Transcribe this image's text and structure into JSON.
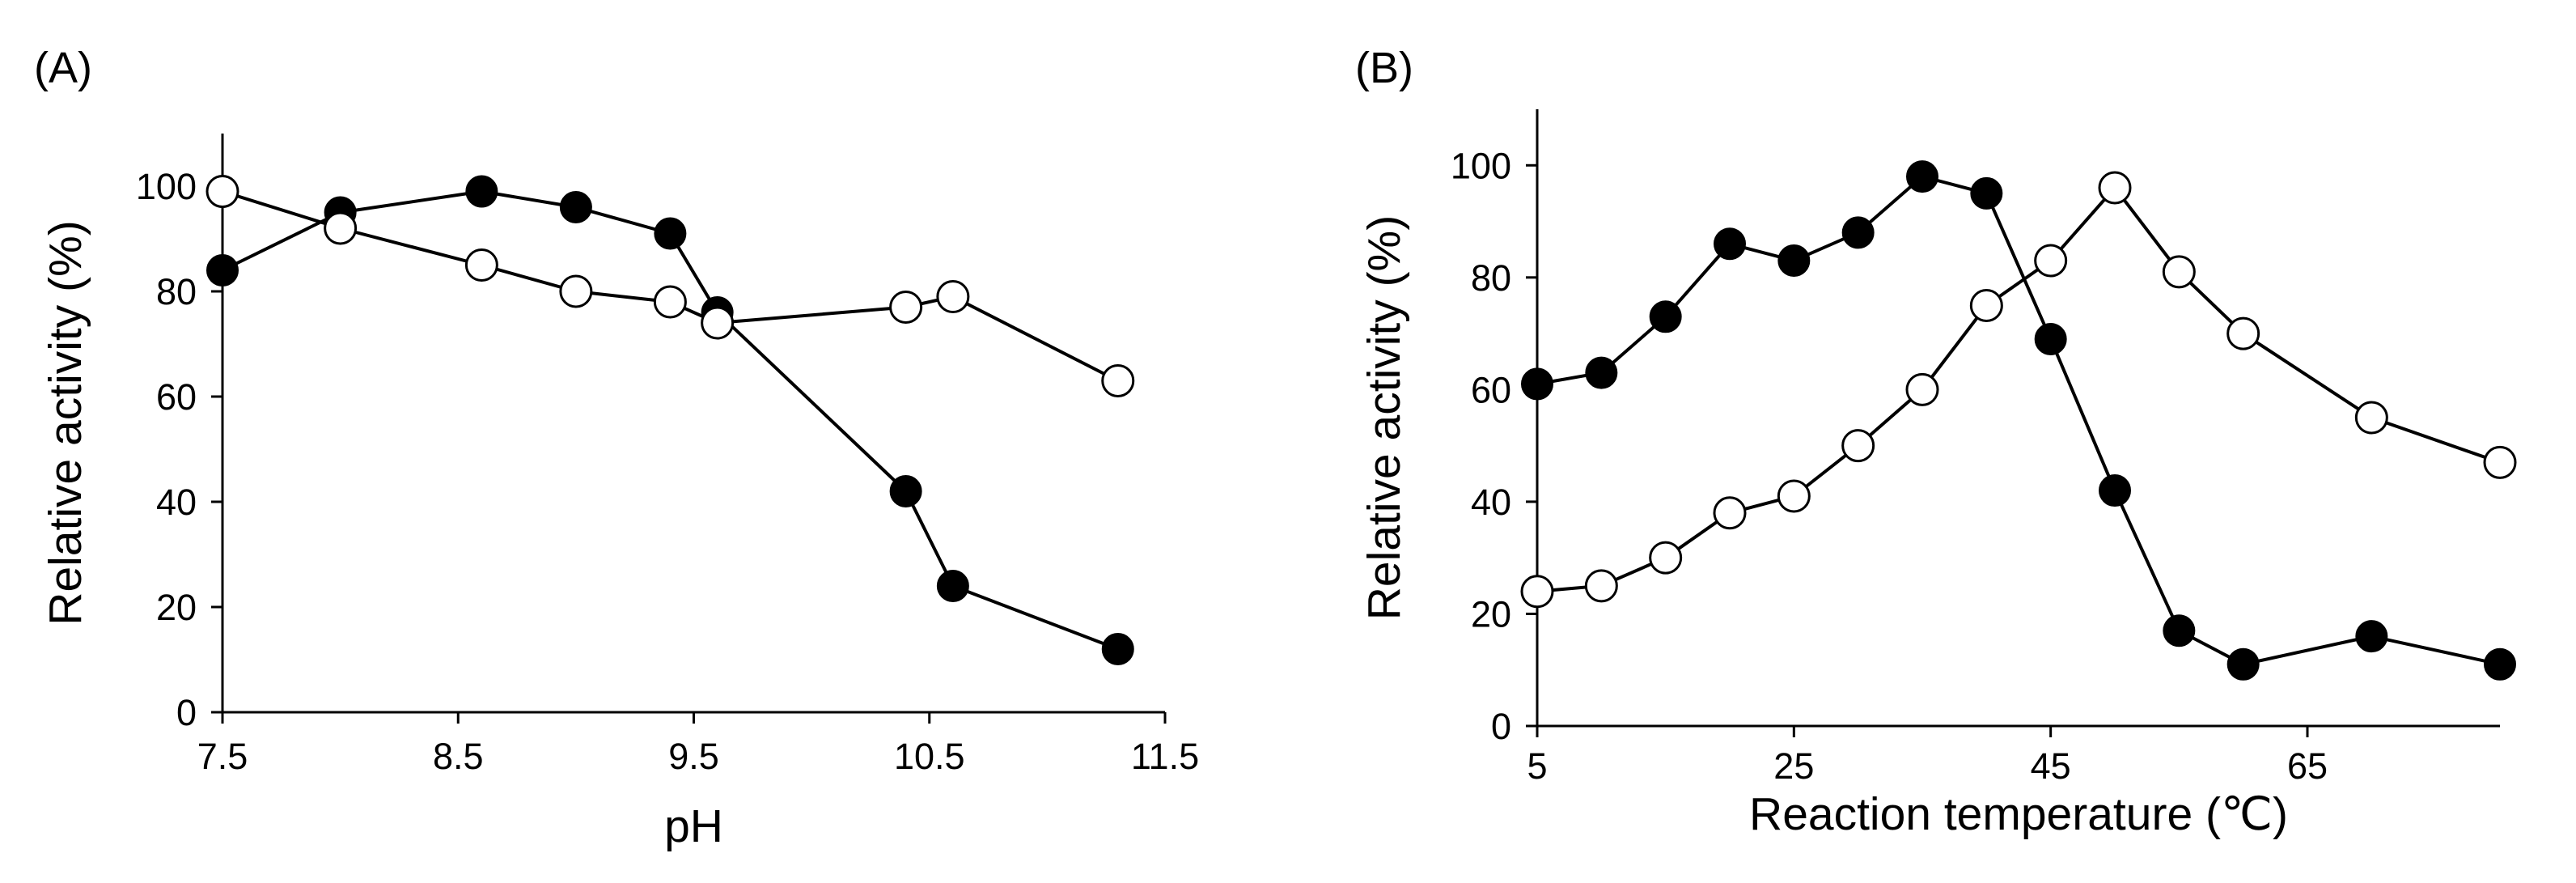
{
  "chart_data": [
    {
      "panel_label": "(A)",
      "type": "line",
      "xlabel": "pH",
      "ylabel": "Relative activity (%)",
      "xlim": [
        7.5,
        11.5
      ],
      "ylim": [
        0,
        110
      ],
      "xticks": [
        7.5,
        8.5,
        9.5,
        10.5,
        11.5
      ],
      "xtick_labels": [
        "7.5",
        "8.5",
        "9.5",
        "10.5",
        "11.5"
      ],
      "yticks": [
        0,
        20,
        40,
        60,
        80,
        100
      ],
      "ytick_labels": [
        "0",
        "20",
        "40",
        "60",
        "80",
        "100"
      ],
      "grid": false,
      "series": [
        {
          "name": "filled",
          "marker": "filled-circle",
          "x": [
            7.5,
            8.0,
            8.6,
            9.0,
            9.4,
            9.6,
            10.4,
            10.6,
            11.3
          ],
          "y": [
            84,
            95,
            99,
            96,
            91,
            76,
            42,
            24,
            12
          ]
        },
        {
          "name": "open",
          "marker": "open-circle",
          "x": [
            7.5,
            8.0,
            8.6,
            9.0,
            9.4,
            9.6,
            10.4,
            10.6,
            11.3
          ],
          "y": [
            99,
            92,
            85,
            80,
            78,
            74,
            77,
            79,
            63
          ]
        }
      ]
    },
    {
      "panel_label": "(B)",
      "type": "line",
      "xlabel": "Reaction temperature (℃)",
      "ylabel": "Relative activity (%)",
      "xlim": [
        5,
        80
      ],
      "ylim": [
        0,
        110
      ],
      "xticks": [
        5,
        25,
        45,
        65
      ],
      "xtick_labels": [
        "5",
        "25",
        "45",
        "65"
      ],
      "yticks": [
        0,
        20,
        40,
        60,
        80,
        100
      ],
      "ytick_labels": [
        "0",
        "20",
        "40",
        "60",
        "80",
        "100"
      ],
      "grid": false,
      "series": [
        {
          "name": "filled",
          "marker": "filled-circle",
          "x": [
            5,
            10,
            15,
            20,
            25,
            30,
            35,
            40,
            45,
            50,
            55,
            60,
            70,
            80
          ],
          "y": [
            61,
            63,
            73,
            86,
            83,
            88,
            98,
            95,
            69,
            42,
            17,
            11,
            16,
            11
          ]
        },
        {
          "name": "open",
          "marker": "open-circle",
          "x": [
            5,
            10,
            15,
            20,
            25,
            30,
            35,
            40,
            45,
            50,
            55,
            60,
            70,
            80
          ],
          "y": [
            24,
            25,
            30,
            38,
            41,
            50,
            60,
            75,
            83,
            96,
            81,
            70,
            55,
            47
          ]
        }
      ]
    }
  ]
}
